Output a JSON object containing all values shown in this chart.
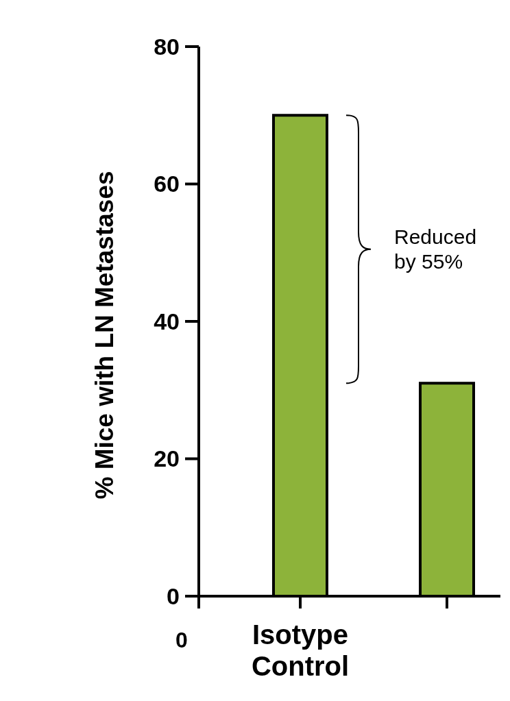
{
  "chart_data": {
    "type": "bar",
    "categories": [
      "Isotype Control",
      null
    ],
    "values": [
      70,
      31
    ],
    "color": "#8db33a",
    "ylabel": "% Mice with LN Metastases",
    "ylim": [
      0,
      80
    ],
    "yticks": [
      0,
      20,
      40,
      60,
      80
    ],
    "annotations": [
      "Reduced by 55%",
      "0"
    ]
  }
}
